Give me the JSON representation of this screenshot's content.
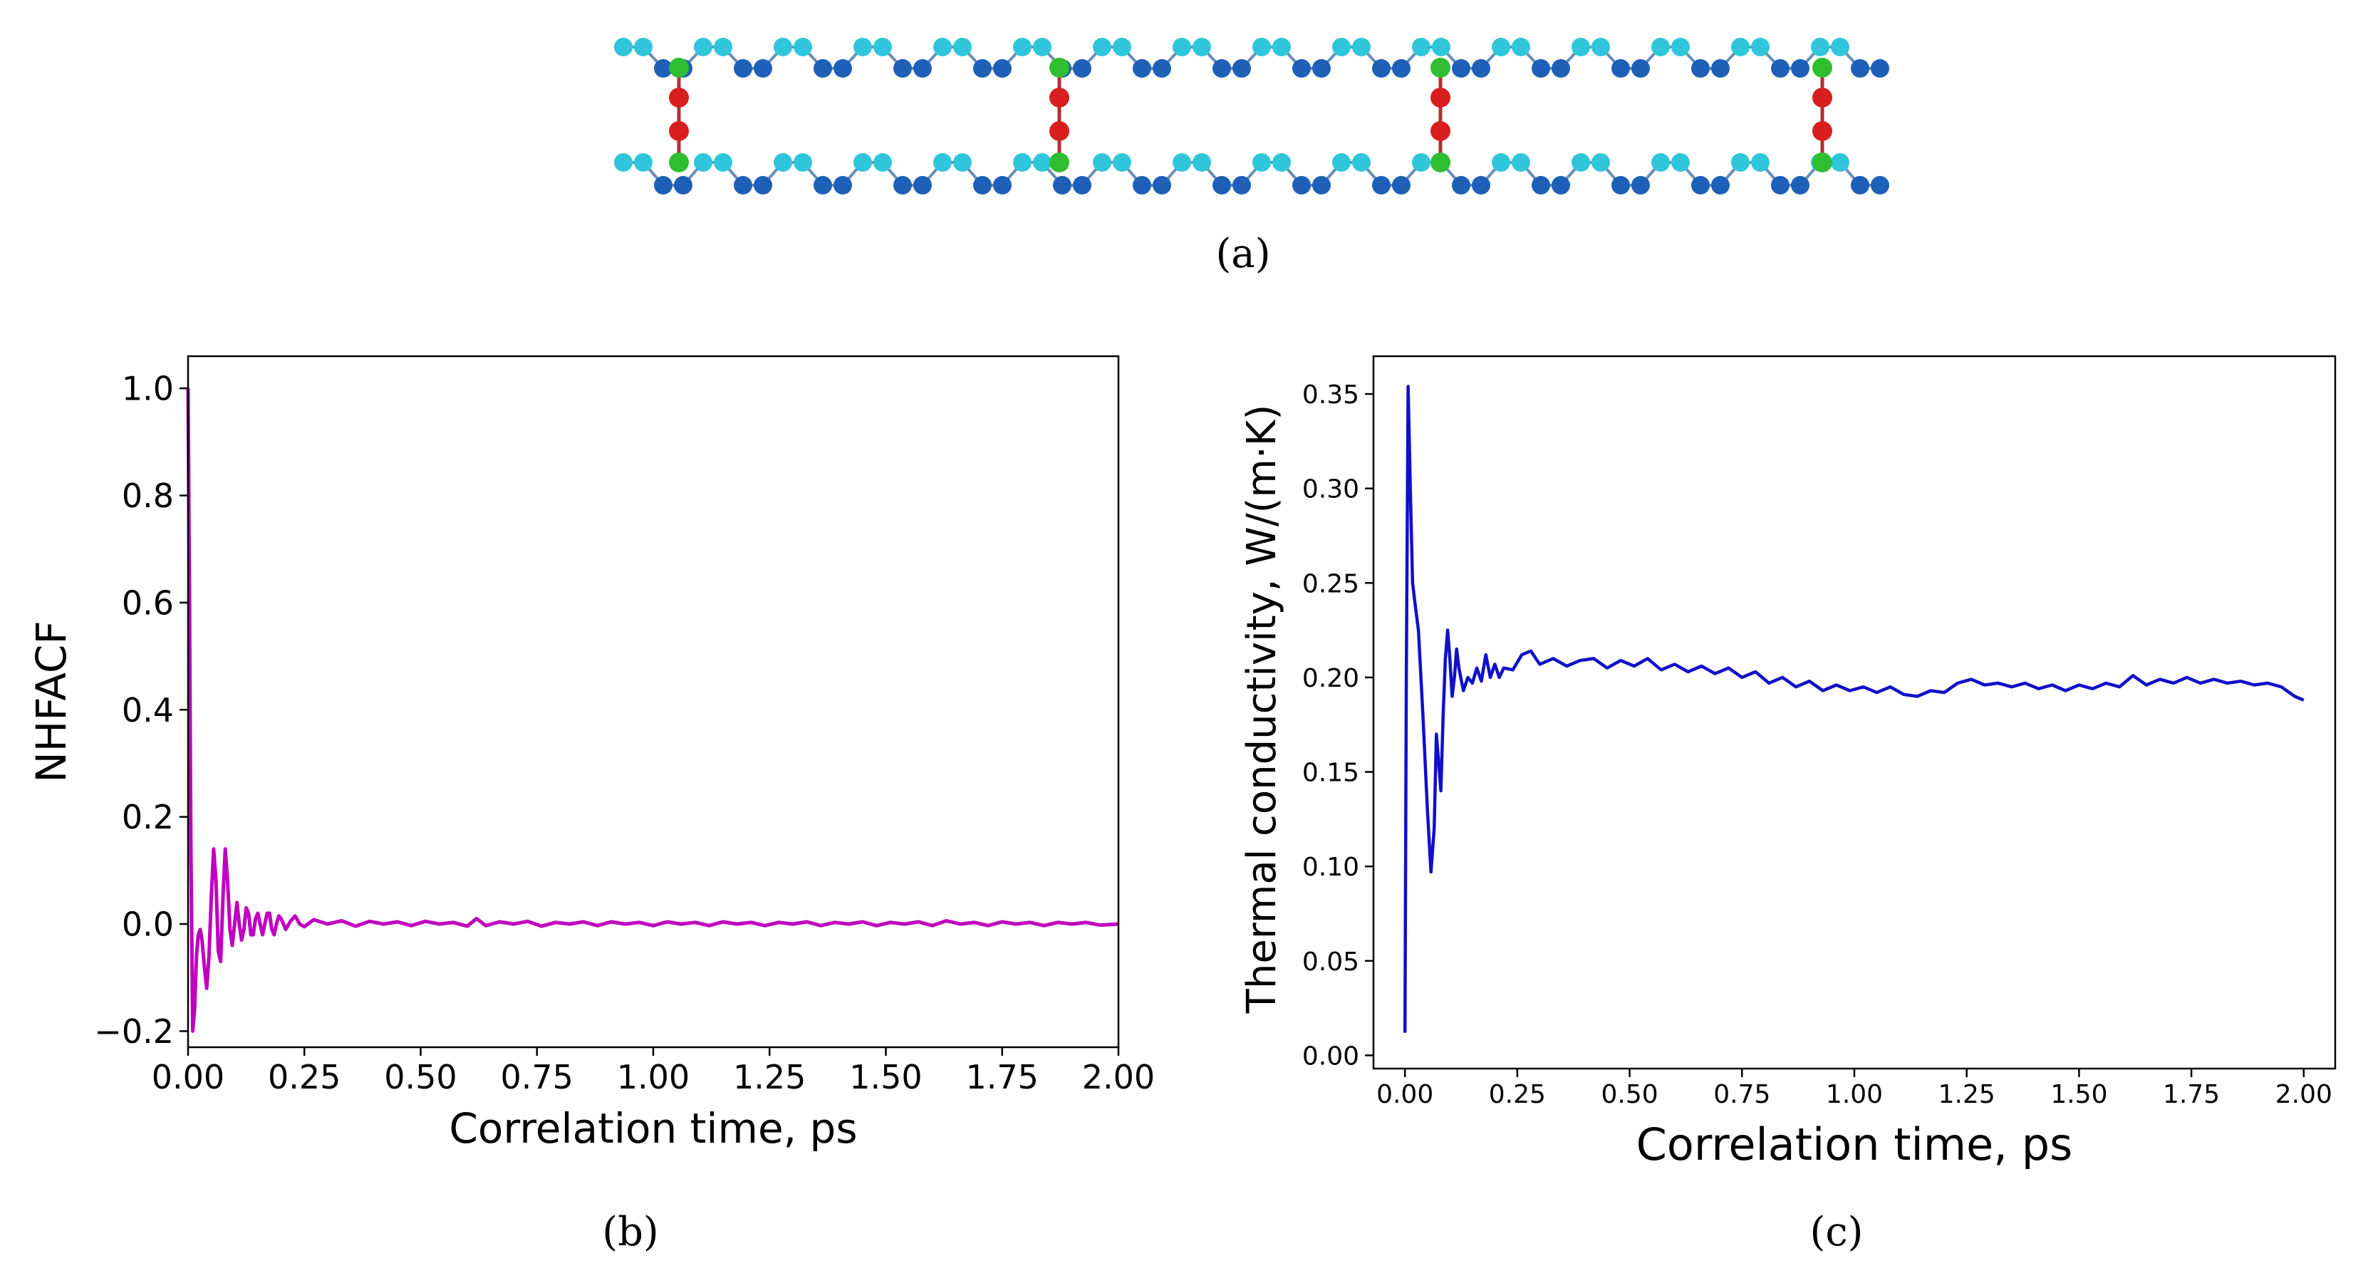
{
  "panels": {
    "a": {
      "caption": "(a)"
    },
    "b": {
      "caption": "(b)"
    },
    "c": {
      "caption": "(c)"
    }
  },
  "colors": {
    "nhfacf_line": "#c000c0",
    "kappa_line": "#1010c8",
    "atom_light": "#2fc6dc",
    "atom_dark": "#1e5fb8",
    "atom_green": "#2fbe2f",
    "atom_red": "#d81e1e",
    "axis": "#000000"
  },
  "chart_data": [
    {
      "panel": "b",
      "type": "line",
      "title": "",
      "xlabel": "Correlation time, ps",
      "ylabel": "NHFACF",
      "xlim": [
        0.0,
        2.0
      ],
      "ylim": [
        -0.23,
        1.06
      ],
      "xticks": [
        0.0,
        0.25,
        0.5,
        0.75,
        1.0,
        1.25,
        1.5,
        1.75,
        2.0
      ],
      "xtick_labels": [
        "0.00",
        "0.25",
        "0.50",
        "0.75",
        "1.00",
        "1.25",
        "1.50",
        "1.75",
        "2.00"
      ],
      "yticks": [
        -0.2,
        0.0,
        0.2,
        0.4,
        0.6,
        0.8,
        1.0
      ],
      "ytick_labels": [
        "−0.2",
        "0.0",
        "0.2",
        "0.4",
        "0.6",
        "0.8",
        "1.0"
      ],
      "grid": false,
      "series": [
        {
          "name": "NHFACF",
          "points": [
            [
              0.0,
              1.0
            ],
            [
              0.003,
              0.6
            ],
            [
              0.006,
              0.15
            ],
            [
              0.01,
              -0.2
            ],
            [
              0.014,
              -0.16
            ],
            [
              0.018,
              -0.06
            ],
            [
              0.022,
              -0.02
            ],
            [
              0.026,
              -0.01
            ],
            [
              0.03,
              -0.03
            ],
            [
              0.035,
              -0.08
            ],
            [
              0.04,
              -0.12
            ],
            [
              0.045,
              -0.06
            ],
            [
              0.05,
              0.05
            ],
            [
              0.055,
              0.14
            ],
            [
              0.06,
              0.08
            ],
            [
              0.065,
              -0.05
            ],
            [
              0.07,
              -0.07
            ],
            [
              0.075,
              0.05
            ],
            [
              0.08,
              0.14
            ],
            [
              0.085,
              0.08
            ],
            [
              0.09,
              -0.01
            ],
            [
              0.095,
              -0.04
            ],
            [
              0.1,
              0.0
            ],
            [
              0.105,
              0.04
            ],
            [
              0.11,
              0.0
            ],
            [
              0.115,
              -0.03
            ],
            [
              0.12,
              -0.01
            ],
            [
              0.125,
              0.03
            ],
            [
              0.13,
              0.02
            ],
            [
              0.135,
              -0.02
            ],
            [
              0.14,
              -0.02
            ],
            [
              0.145,
              0.01
            ],
            [
              0.15,
              0.02
            ],
            [
              0.155,
              0.0
            ],
            [
              0.16,
              -0.02
            ],
            [
              0.165,
              0.0
            ],
            [
              0.17,
              0.02
            ],
            [
              0.175,
              0.02
            ],
            [
              0.18,
              -0.01
            ],
            [
              0.185,
              -0.02
            ],
            [
              0.19,
              0.0
            ],
            [
              0.195,
              0.015
            ],
            [
              0.2,
              0.01
            ],
            [
              0.21,
              -0.01
            ],
            [
              0.22,
              0.005
            ],
            [
              0.23,
              0.015
            ],
            [
              0.24,
              0.0
            ],
            [
              0.25,
              -0.005
            ],
            [
              0.27,
              0.008
            ],
            [
              0.3,
              0.0
            ],
            [
              0.33,
              0.006
            ],
            [
              0.36,
              -0.004
            ],
            [
              0.39,
              0.005
            ],
            [
              0.42,
              0.0
            ],
            [
              0.45,
              0.004
            ],
            [
              0.48,
              -0.003
            ],
            [
              0.51,
              0.005
            ],
            [
              0.54,
              0.0
            ],
            [
              0.57,
              0.003
            ],
            [
              0.6,
              -0.004
            ],
            [
              0.62,
              0.01
            ],
            [
              0.64,
              -0.003
            ],
            [
              0.67,
              0.004
            ],
            [
              0.7,
              0.0
            ],
            [
              0.73,
              0.005
            ],
            [
              0.76,
              -0.004
            ],
            [
              0.79,
              0.003
            ],
            [
              0.82,
              0.0
            ],
            [
              0.85,
              0.004
            ],
            [
              0.88,
              -0.003
            ],
            [
              0.91,
              0.004
            ],
            [
              0.94,
              0.0
            ],
            [
              0.97,
              0.003
            ],
            [
              1.0,
              -0.003
            ],
            [
              1.03,
              0.004
            ],
            [
              1.06,
              0.0
            ],
            [
              1.09,
              0.003
            ],
            [
              1.12,
              -0.003
            ],
            [
              1.15,
              0.004
            ],
            [
              1.18,
              0.0
            ],
            [
              1.21,
              0.003
            ],
            [
              1.24,
              -0.003
            ],
            [
              1.27,
              0.003
            ],
            [
              1.3,
              0.0
            ],
            [
              1.33,
              0.004
            ],
            [
              1.36,
              -0.003
            ],
            [
              1.39,
              0.003
            ],
            [
              1.42,
              0.0
            ],
            [
              1.45,
              0.004
            ],
            [
              1.48,
              -0.003
            ],
            [
              1.51,
              0.003
            ],
            [
              1.54,
              0.0
            ],
            [
              1.57,
              0.004
            ],
            [
              1.6,
              -0.003
            ],
            [
              1.63,
              0.006
            ],
            [
              1.66,
              0.0
            ],
            [
              1.69,
              0.003
            ],
            [
              1.72,
              -0.003
            ],
            [
              1.75,
              0.004
            ],
            [
              1.78,
              0.0
            ],
            [
              1.81,
              0.003
            ],
            [
              1.84,
              -0.003
            ],
            [
              1.87,
              0.003
            ],
            [
              1.9,
              0.0
            ],
            [
              1.93,
              0.003
            ],
            [
              1.96,
              -0.002
            ],
            [
              2.0,
              0.0
            ]
          ]
        }
      ]
    },
    {
      "panel": "c",
      "type": "line",
      "title": "",
      "xlabel": "Correlation time, ps",
      "ylabel": "Thermal conductivity, W/(m·K)",
      "xlim": [
        -0.07,
        2.07
      ],
      "ylim": [
        -0.007,
        0.37
      ],
      "xticks": [
        0.0,
        0.25,
        0.5,
        0.75,
        1.0,
        1.25,
        1.5,
        1.75,
        2.0
      ],
      "xtick_labels": [
        "0.00",
        "0.25",
        "0.50",
        "0.75",
        "1.00",
        "1.25",
        "1.50",
        "1.75",
        "2.00"
      ],
      "yticks": [
        0.0,
        0.05,
        0.1,
        0.15,
        0.2,
        0.25,
        0.3,
        0.35
      ],
      "ytick_labels": [
        "0.00",
        "0.05",
        "0.10",
        "0.15",
        "0.20",
        "0.25",
        "0.30",
        "0.35"
      ],
      "grid": false,
      "series": [
        {
          "name": "Thermal conductivity",
          "points": [
            [
              0.0,
              0.012
            ],
            [
              0.003,
              0.2
            ],
            [
              0.007,
              0.354
            ],
            [
              0.012,
              0.3
            ],
            [
              0.017,
              0.25
            ],
            [
              0.022,
              0.24
            ],
            [
              0.03,
              0.225
            ],
            [
              0.04,
              0.18
            ],
            [
              0.05,
              0.13
            ],
            [
              0.058,
              0.097
            ],
            [
              0.065,
              0.12
            ],
            [
              0.07,
              0.17
            ],
            [
              0.075,
              0.155
            ],
            [
              0.08,
              0.14
            ],
            [
              0.085,
              0.18
            ],
            [
              0.09,
              0.21
            ],
            [
              0.095,
              0.225
            ],
            [
              0.1,
              0.21
            ],
            [
              0.105,
              0.19
            ],
            [
              0.11,
              0.2
            ],
            [
              0.115,
              0.215
            ],
            [
              0.12,
              0.205
            ],
            [
              0.13,
              0.193
            ],
            [
              0.14,
              0.2
            ],
            [
              0.15,
              0.197
            ],
            [
              0.16,
              0.205
            ],
            [
              0.17,
              0.198
            ],
            [
              0.18,
              0.212
            ],
            [
              0.19,
              0.2
            ],
            [
              0.2,
              0.207
            ],
            [
              0.21,
              0.2
            ],
            [
              0.22,
              0.205
            ],
            [
              0.24,
              0.204
            ],
            [
              0.26,
              0.212
            ],
            [
              0.28,
              0.214
            ],
            [
              0.3,
              0.207
            ],
            [
              0.33,
              0.21
            ],
            [
              0.36,
              0.206
            ],
            [
              0.39,
              0.209
            ],
            [
              0.42,
              0.21
            ],
            [
              0.45,
              0.205
            ],
            [
              0.48,
              0.209
            ],
            [
              0.51,
              0.206
            ],
            [
              0.54,
              0.21
            ],
            [
              0.57,
              0.204
            ],
            [
              0.6,
              0.207
            ],
            [
              0.63,
              0.203
            ],
            [
              0.66,
              0.206
            ],
            [
              0.69,
              0.202
            ],
            [
              0.72,
              0.205
            ],
            [
              0.75,
              0.2
            ],
            [
              0.78,
              0.203
            ],
            [
              0.81,
              0.197
            ],
            [
              0.84,
              0.2
            ],
            [
              0.87,
              0.195
            ],
            [
              0.9,
              0.198
            ],
            [
              0.93,
              0.193
            ],
            [
              0.96,
              0.196
            ],
            [
              0.99,
              0.193
            ],
            [
              1.02,
              0.195
            ],
            [
              1.05,
              0.192
            ],
            [
              1.08,
              0.195
            ],
            [
              1.11,
              0.191
            ],
            [
              1.14,
              0.19
            ],
            [
              1.17,
              0.193
            ],
            [
              1.2,
              0.192
            ],
            [
              1.23,
              0.197
            ],
            [
              1.26,
              0.199
            ],
            [
              1.29,
              0.196
            ],
            [
              1.32,
              0.197
            ],
            [
              1.35,
              0.195
            ],
            [
              1.38,
              0.197
            ],
            [
              1.41,
              0.194
            ],
            [
              1.44,
              0.196
            ],
            [
              1.47,
              0.193
            ],
            [
              1.5,
              0.196
            ],
            [
              1.53,
              0.194
            ],
            [
              1.56,
              0.197
            ],
            [
              1.59,
              0.195
            ],
            [
              1.62,
              0.201
            ],
            [
              1.65,
              0.196
            ],
            [
              1.68,
              0.199
            ],
            [
              1.71,
              0.197
            ],
            [
              1.74,
              0.2
            ],
            [
              1.77,
              0.197
            ],
            [
              1.8,
              0.199
            ],
            [
              1.83,
              0.197
            ],
            [
              1.86,
              0.198
            ],
            [
              1.89,
              0.196
            ],
            [
              1.92,
              0.197
            ],
            [
              1.95,
              0.195
            ],
            [
              1.98,
              0.19
            ],
            [
              2.0,
              0.188
            ]
          ]
        }
      ]
    }
  ]
}
